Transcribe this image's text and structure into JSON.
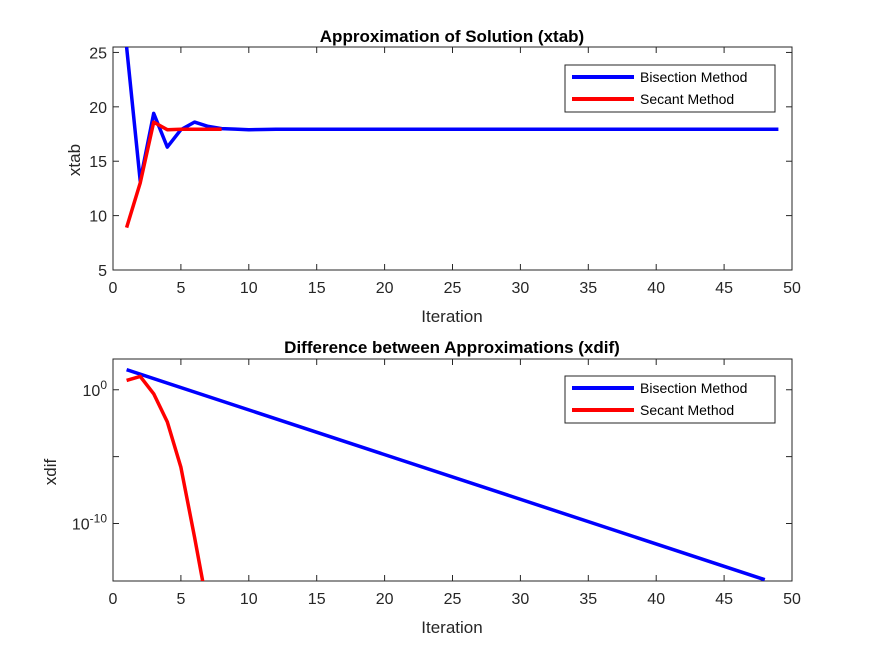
{
  "colors": {
    "bisection": "#0000ff",
    "secant": "#ff0000",
    "axes": "#262626"
  },
  "chart_data": [
    {
      "type": "line",
      "title": "Approximation of Solution (xtab)",
      "xlabel": "Iteration",
      "ylabel": "xtab",
      "xlim": [
        0,
        50
      ],
      "ylim": [
        5,
        25.5
      ],
      "xticks": [
        0,
        5,
        10,
        15,
        20,
        25,
        30,
        35,
        40,
        45,
        50
      ],
      "yticks": [
        5,
        10,
        15,
        20,
        25
      ],
      "yscale": "linear",
      "grid": false,
      "legend_position": "top-right",
      "series": [
        {
          "name": "Bisection Method",
          "color": "#0000ff",
          "x": [
            1,
            2,
            3,
            4,
            5,
            6,
            7,
            8,
            9,
            10,
            11,
            12,
            13,
            14,
            15,
            16,
            17,
            18,
            19,
            20,
            21,
            22,
            23,
            24,
            25,
            26,
            27,
            28,
            29,
            30,
            31,
            32,
            33,
            34,
            35,
            36,
            37,
            38,
            39,
            40,
            41,
            42,
            43,
            44,
            45,
            46,
            47,
            48,
            49
          ],
          "y": [
            25.5,
            13.2,
            19.4,
            16.3,
            17.9,
            18.6,
            18.2,
            18.0,
            17.95,
            17.9,
            17.92,
            17.93,
            17.93,
            17.93,
            17.93,
            17.93,
            17.93,
            17.93,
            17.93,
            17.93,
            17.93,
            17.93,
            17.93,
            17.93,
            17.93,
            17.93,
            17.93,
            17.93,
            17.93,
            17.93,
            17.93,
            17.93,
            17.93,
            17.93,
            17.93,
            17.93,
            17.93,
            17.93,
            17.93,
            17.93,
            17.93,
            17.93,
            17.93,
            17.93,
            17.93,
            17.93,
            17.93,
            17.93,
            17.93
          ]
        },
        {
          "name": "Secant Method",
          "color": "#ff0000",
          "x": [
            1,
            2,
            3,
            4,
            5,
            6,
            7,
            8
          ],
          "y": [
            8.9,
            13.0,
            18.6,
            17.9,
            17.93,
            17.93,
            17.93,
            17.93
          ]
        }
      ]
    },
    {
      "type": "line",
      "title": "Difference between Approximations (xdif)",
      "xlabel": "Iteration",
      "ylabel": "xdif",
      "xlim": [
        0,
        50
      ],
      "ylim_exp": [
        -14.3,
        2.3
      ],
      "xticks": [
        0,
        5,
        10,
        15,
        20,
        25,
        30,
        35,
        40,
        45,
        50
      ],
      "yticks_exp": [
        0,
        -10
      ],
      "yscale": "log",
      "grid": false,
      "legend_position": "top-right",
      "series": [
        {
          "name": "Bisection Method",
          "color": "#0000ff",
          "x": [
            1,
            48
          ],
          "y_exp": [
            1.5,
            -14.2
          ]
        },
        {
          "name": "Secant Method",
          "color": "#ff0000",
          "x": [
            1,
            2,
            3,
            4,
            5,
            6,
            7
          ],
          "y_exp": [
            0.7,
            1.0,
            -0.3,
            -2.4,
            -5.8,
            -11.0,
            -16.5
          ]
        }
      ]
    }
  ]
}
